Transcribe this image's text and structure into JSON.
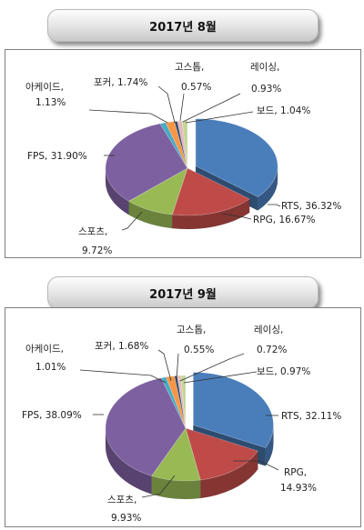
{
  "chart_data": [
    {
      "type": "pie",
      "title": "2017년 8월",
      "categories": [
        "RTS",
        "RPG",
        "스포츠",
        "FPS",
        "아케이드",
        "포커",
        "고스톱",
        "레이싱",
        "보드"
      ],
      "values": [
        36.32,
        16.67,
        9.72,
        31.9,
        1.13,
        1.74,
        0.57,
        0.93,
        1.04
      ],
      "labels": {
        "rts": "RTS, 36.32%",
        "rpg": "RPG, 16.67%",
        "sports_1": "스포츠,",
        "sports_2": "9.72%",
        "fps": "FPS, 31.90%",
        "arcade_1": "아케이드,",
        "arcade_2": "1.13%",
        "poker": "포커, 1.74%",
        "gostop_1": "고스톱,",
        "gostop_2": "0.57%",
        "racing_1": "레이싱,",
        "racing_2": "0.93%",
        "board": "보드, 1.04%"
      }
    },
    {
      "type": "pie",
      "title": "2017년 9월",
      "categories": [
        "RTS",
        "RPG",
        "스포츠",
        "FPS",
        "아케이드",
        "포커",
        "고스톱",
        "레이싱",
        "보드"
      ],
      "values": [
        32.11,
        14.93,
        9.93,
        38.09,
        1.01,
        1.68,
        0.55,
        0.72,
        0.97
      ],
      "labels": {
        "rts": "RTS, 32.11%",
        "rpg_1": "RPG,",
        "rpg_2": "14.93%",
        "sports_1": "스포츠,",
        "sports_2": "9.93%",
        "fps": "FPS, 38.09%",
        "arcade_1": "아케이드,",
        "arcade_2": "1.01%",
        "poker": "포커, 1.68%",
        "gostop_1": "고스톱,",
        "gostop_2": "0.55%",
        "racing_1": "레이싱,",
        "racing_2": "0.72%",
        "board": "보드, 0.97%"
      }
    }
  ],
  "colors": {
    "RTS": "#4a7ebb",
    "RPG": "#be4b48",
    "스포츠": "#98b954",
    "FPS": "#7d60a0",
    "아케이드": "#46aac5",
    "포커": "#f79646",
    "고스톱": "#2c4d75",
    "레이싱": "#e6b9b8",
    "보드": "#c3d69b"
  }
}
